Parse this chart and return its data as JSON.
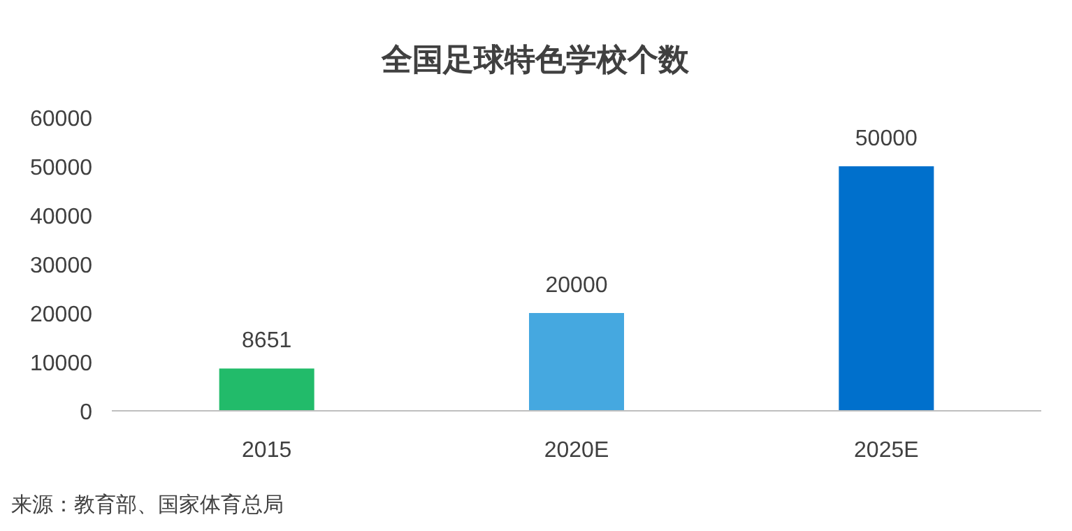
{
  "chart_data": {
    "type": "bar",
    "title": "全国足球特色学校个数",
    "categories": [
      "2015",
      "2020E",
      "2025E"
    ],
    "values": [
      8651,
      20000,
      50000
    ],
    "colors": [
      "#22bb6a",
      "#45a8e0",
      "#0070cc"
    ],
    "ylim": [
      0,
      60000
    ],
    "yticks": [
      0,
      10000,
      20000,
      30000,
      40000,
      50000,
      60000
    ],
    "data_labels": true,
    "grid": false,
    "annotations": [
      "来源：教育部、国家体育总局"
    ]
  }
}
